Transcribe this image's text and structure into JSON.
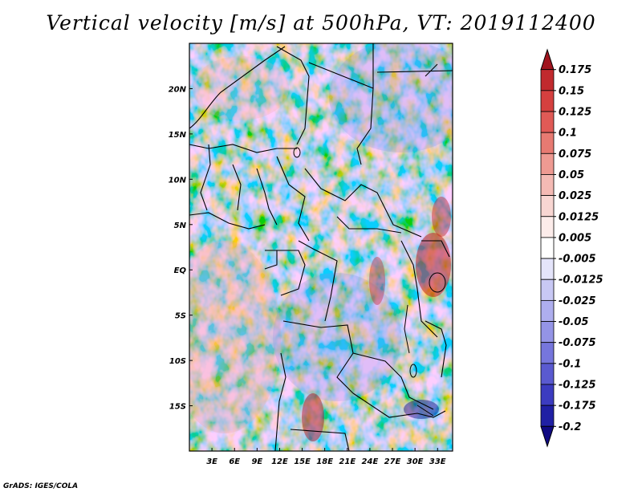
{
  "title": "Vertical velocity [m/s] at 500hPa, VT: 2019112400",
  "credit": "GrADS: IGES/COLA",
  "map": {
    "lon_range": [
      0,
      35
    ],
    "lat_range": [
      -20,
      25
    ],
    "lon_ticks": [
      "3E",
      "6E",
      "9E",
      "12E",
      "15E",
      "18E",
      "21E",
      "24E",
      "27E",
      "30E",
      "33E"
    ],
    "lon_tick_values": [
      3,
      6,
      9,
      12,
      15,
      18,
      21,
      24,
      27,
      30,
      33
    ],
    "lat_ticks": [
      "20N",
      "15N",
      "10N",
      "5N",
      "EQ",
      "5S",
      "10S",
      "15S"
    ],
    "lat_tick_values": [
      20,
      15,
      10,
      5,
      0,
      -5,
      -10,
      -15
    ]
  },
  "colorbar": {
    "labels": [
      "0.175",
      "0.15",
      "0.125",
      "0.1",
      "0.075",
      "0.05",
      "0.025",
      "0.0125",
      "0.005",
      "-0.005",
      "-0.0125",
      "-0.025",
      "-0.05",
      "-0.075",
      "-0.1",
      "-0.125",
      "-0.175",
      "-0.2"
    ],
    "colors": [
      "#a0141e",
      "#c12a2e",
      "#d5403f",
      "#e05a56",
      "#e77a72",
      "#ee9a92",
      "#f4bab4",
      "#f8d6d2",
      "#fcecea",
      "#ffffff",
      "#e4e4fa",
      "#c8c8f4",
      "#aeaeee",
      "#9494e6",
      "#7676dc",
      "#5a5ad0",
      "#3c3cc0",
      "#2020a4",
      "#100a82"
    ]
  }
}
